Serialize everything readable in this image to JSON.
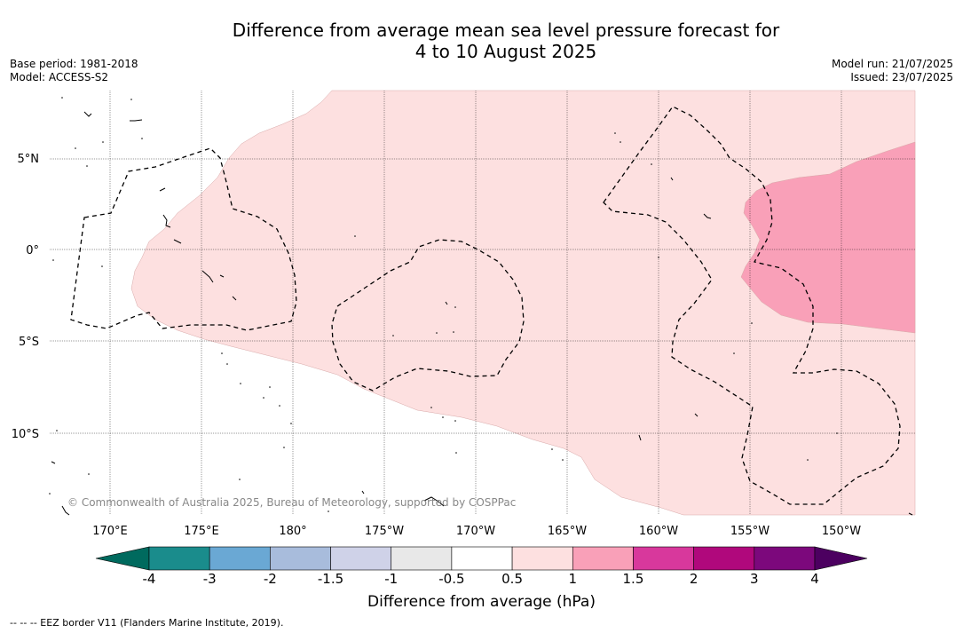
{
  "title_line1": "Difference from average mean sea level pressure forecast for",
  "title_line2": "4 to 10 August 2025",
  "base_period": "Base period: 1981-2018",
  "model": "Model: ACCESS-S2",
  "model_run": "Model run: 21/07/2025",
  "issued": "Issued: 23/07/2025",
  "copyright": "© Commonwealth of Australia 2025, Bureau of Meteorology, supported by COSPPac",
  "lat_labels": [
    "5°N",
    "0°",
    "5°S",
    "10°S"
  ],
  "lon_labels": [
    "170°E",
    "175°E",
    "180°",
    "175°W",
    "170°W",
    "165°W",
    "160°W",
    "155°W",
    "150°W"
  ],
  "colorbar": {
    "ticks": [
      "-4",
      "-3",
      "-2",
      "-1.5",
      "-1",
      "-0.5",
      "0.5",
      "1",
      "1.5",
      "2",
      "3",
      "4"
    ],
    "colors": [
      "#1a8c8c",
      "#6aa8d4",
      "#a8bcdc",
      "#cfd2e8",
      "#e8e8e8",
      "#ffffff",
      "#fde0e0",
      "#f9a0b8",
      "#d8389c",
      "#b0087c",
      "#7c087c"
    ],
    "under_color": "#006a5e",
    "over_color": "#4c0060",
    "title": "Difference from average (hPa)"
  },
  "footer": "--  --  -- EEZ border V11 (Flanders Marine Institute, 2019)."
}
